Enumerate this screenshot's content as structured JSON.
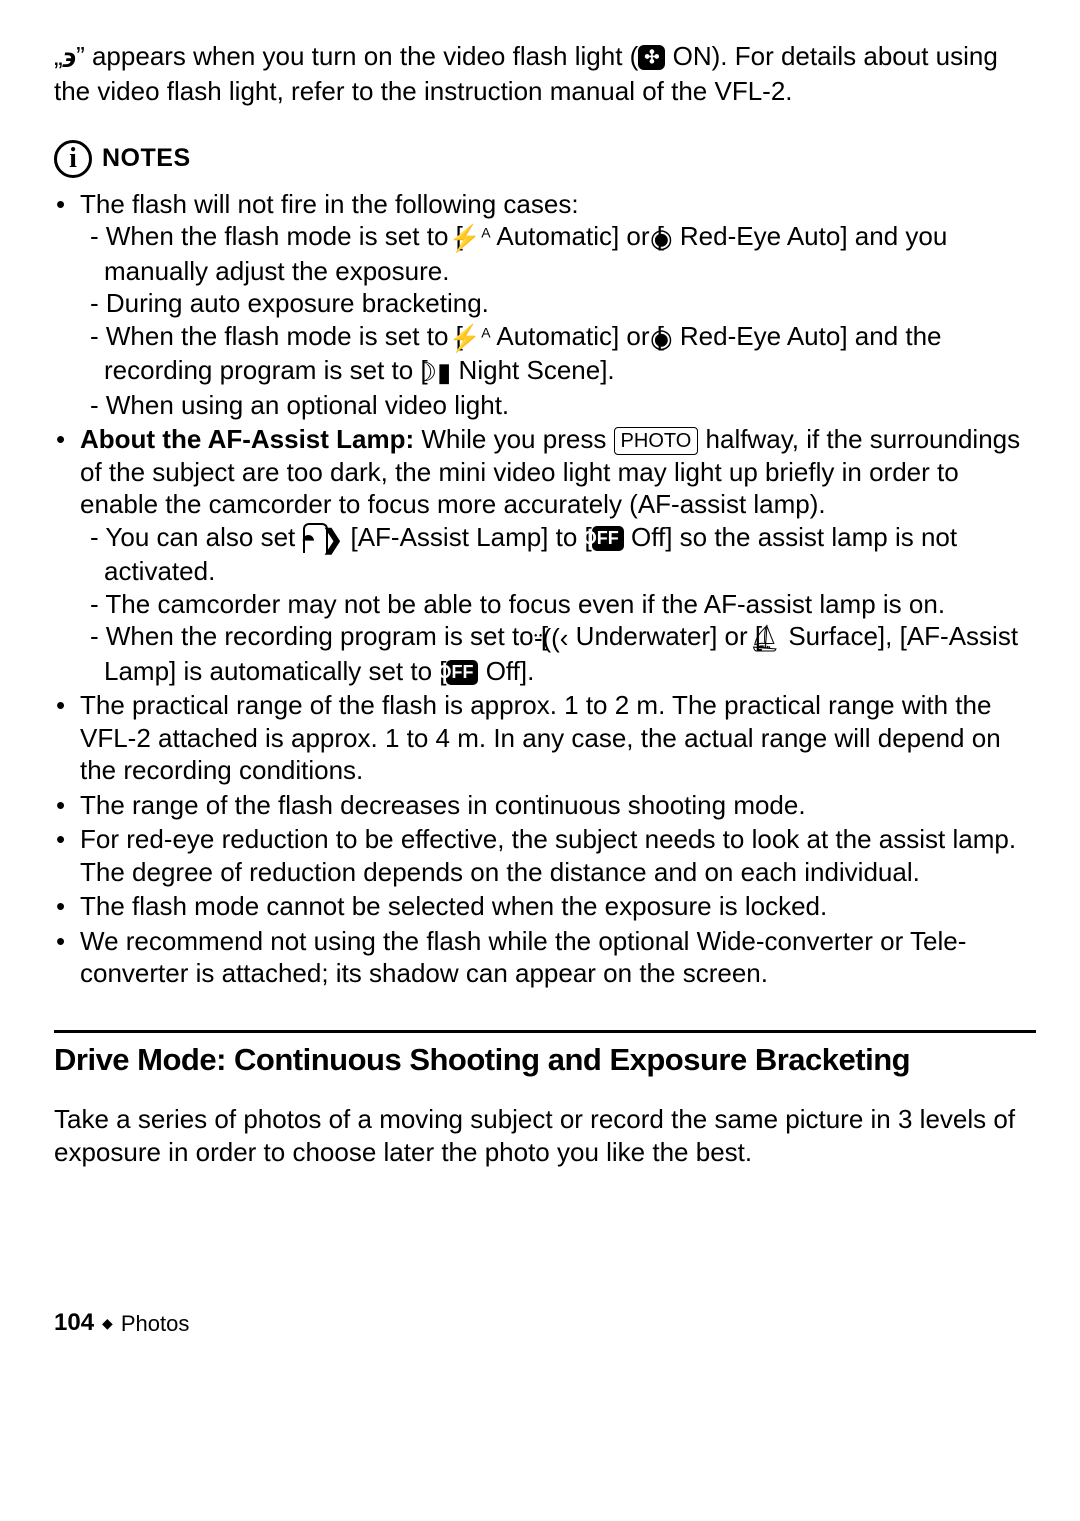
{
  "intro": {
    "part1": "„",
    "flash_symbol": "϶",
    "part2": "” appears when you turn on the video flash light (",
    "on_icon_label": "✣",
    "part3": " ON). For details about using the video flash light, refer to the instruction manual of the VFL-2."
  },
  "notes_label": "NOTES",
  "info_letter": "i",
  "bullets": {
    "b1": {
      "lead": "The flash will not fire in the following cases:",
      "s1a": "When the flash mode is set to [",
      "auto_icon": "⚡",
      "auto_sup": "A",
      "s1b": " Automatic] or [",
      "redeye_icon": "◉",
      "s1c": " Red-Eye Auto] and you manually adjust the exposure.",
      "s2": "During auto exposure bracketing.",
      "s3c": " Red-Eye Auto] and the recording program is set to [",
      "night_icon": "☽▮",
      "s3d": " Night Scene].",
      "s4": "When using an optional video light."
    },
    "b2": {
      "lead_bold": "About the AF-Assist Lamp:",
      "lead_rest_a": " While you press ",
      "photo_label": "PHOTO",
      "lead_rest_b": " halfway, if the surroundings of the subject are too dark, the mini video light may light up briefly in order to enable the camcorder to focus more accurately (AF-assist lamp).",
      "s1a": "You can also set ",
      "cam_icon": "◓",
      "arrow": "❯",
      "s1b": " [AF-Assist Lamp] to [",
      "off_label": "OFF",
      "s1c": " Off] so the assist lamp is not activated.",
      "s2": "The camcorder may not be able to focus even if the AF-assist lamp is on.",
      "s3a": "When the recording program is set to [",
      "uw_icon": "⸚((‹",
      "s3b": " Underwater] or [",
      "surf_icon": "⛵︎",
      "s3c": " Surface], [AF-Assist Lamp] is automatically set to [",
      "s3d": " Off]."
    },
    "b3": "The practical range of the flash is approx. 1 to 2 m. The practical range with the VFL-2 attached is approx. 1 to 4 m. In any case, the actual range will depend on the recording conditions.",
    "b4": "The range of the flash decreases in continuous shooting mode.",
    "b5": "For red-eye reduction to be effective, the subject needs to look at the assist lamp. The degree of reduction depends on the distance and on each individual.",
    "b6": "The flash mode cannot be selected when the exposure is locked.",
    "b7": "We recommend not using the flash while the optional Wide-converter or Tele-converter is attached; its shadow can appear on the screen."
  },
  "section": {
    "title": "Drive Mode: Continuous Shooting and Exposure Bracketing",
    "body": "Take a series of photos of a moving subject or record the same picture in 3 levels of exposure in order to choose later the photo you like the best."
  },
  "footer": {
    "page": "104",
    "diamond": "◆",
    "label": "Photos"
  }
}
